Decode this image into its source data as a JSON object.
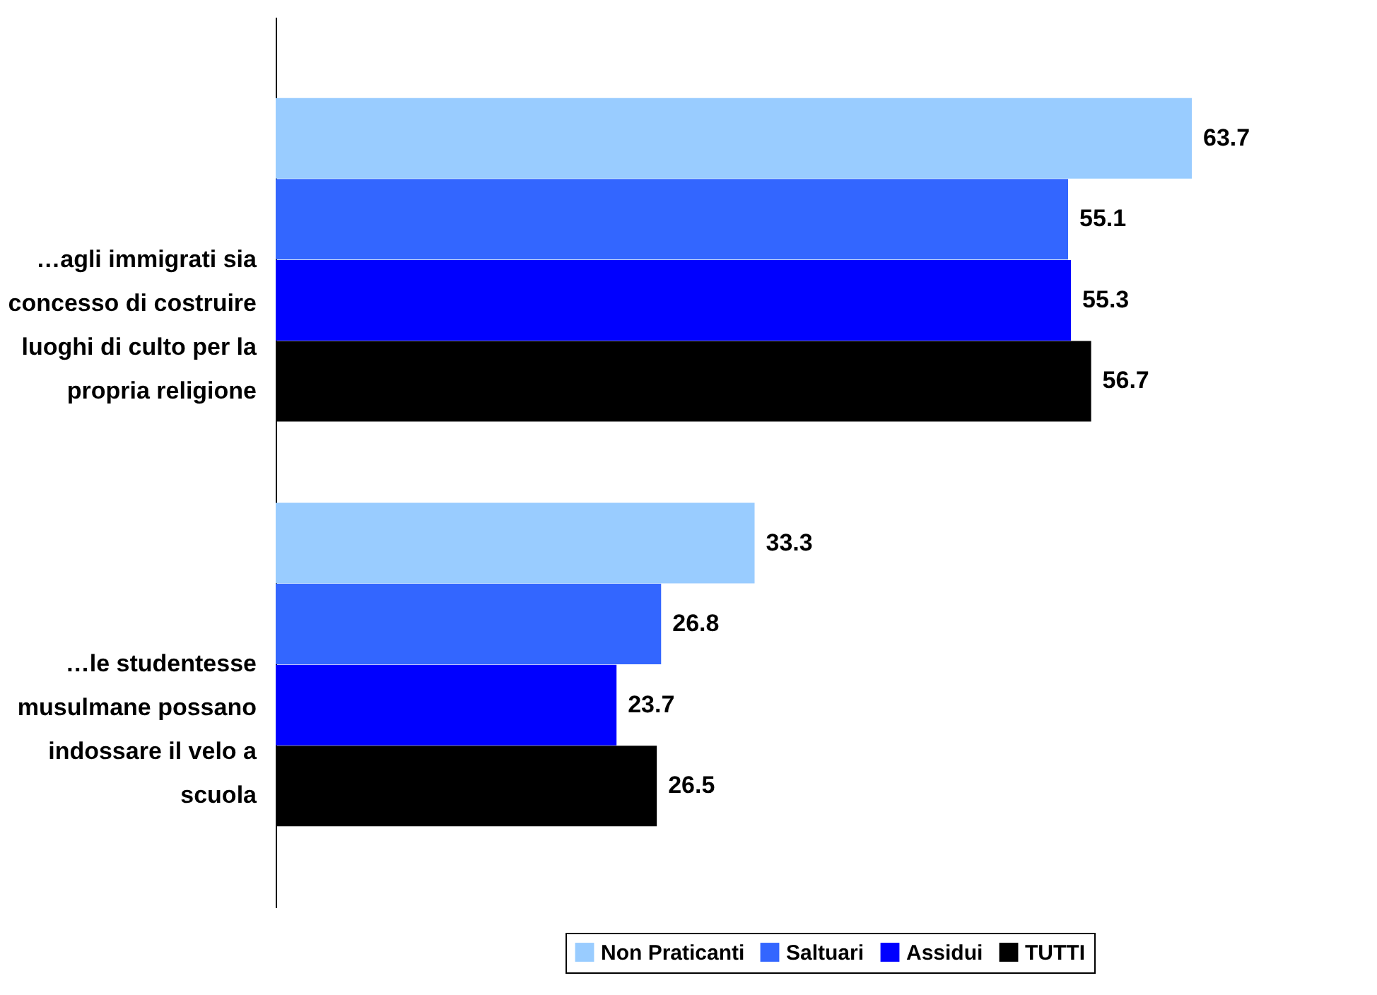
{
  "chart_data": {
    "type": "bar",
    "orientation": "horizontal",
    "categories": [
      "…agli immigrati sia concesso di costruire luoghi di culto per la propria religione",
      "…le studentesse musulmane possano indossare il velo a scuola"
    ],
    "series": [
      {
        "name": "Non Praticanti",
        "color": "#99ccff",
        "values": [
          63.7,
          33.3
        ]
      },
      {
        "name": "Saltuari",
        "color": "#3366ff",
        "values": [
          55.1,
          26.8
        ]
      },
      {
        "name": "Assidui",
        "color": "#0000ff",
        "values": [
          55.3,
          23.7
        ]
      },
      {
        "name": "TUTTI",
        "color": "#000000",
        "values": [
          56.7,
          26.5
        ]
      }
    ],
    "data_labels": true,
    "legend": "bottom right",
    "grid": false
  }
}
